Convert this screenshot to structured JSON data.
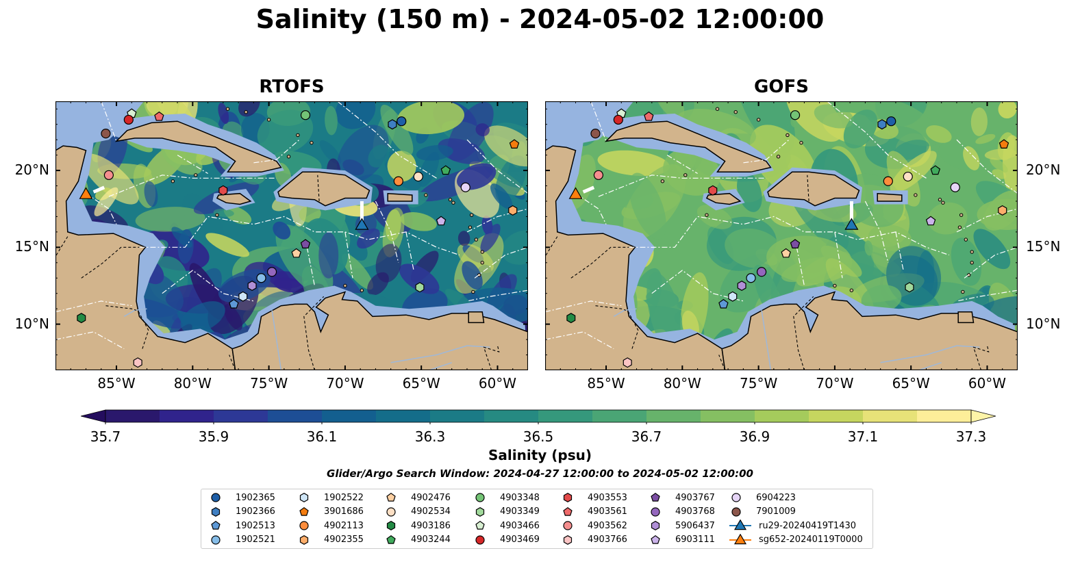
{
  "title": "Salinity (150 m) - 2024-05-02 12:00:00",
  "panels": [
    {
      "title": "RTOFS",
      "kind": "rtofs"
    },
    {
      "title": "GOFS",
      "kind": "gofs"
    }
  ],
  "map": {
    "extent": {
      "lon": [
        -89,
        -58
      ],
      "lat": [
        7,
        24.5
      ]
    },
    "lon_ticks": [
      "85°W",
      "80°W",
      "75°W",
      "70°W",
      "65°W",
      "60°W"
    ],
    "lon_tick_values": [
      -85,
      -80,
      -75,
      -70,
      -65,
      -60
    ],
    "lat_ticks": [
      "20°N",
      "15°N",
      "10°N"
    ],
    "lat_tick_values": [
      20,
      15,
      10
    ],
    "colors": {
      "land": "#d2b48c",
      "shelf": "#96b4e0",
      "eez_lines": "#ffffff",
      "coast": "#000000"
    }
  },
  "colorbar": {
    "label": "Salinity (psu)",
    "ticks": [
      "35.7",
      "35.9",
      "36.1",
      "36.3",
      "36.5",
      "36.7",
      "36.9",
      "37.1",
      "37.3"
    ],
    "min": 35.7,
    "max": 37.3,
    "step": 0.1,
    "colors": [
      "#2a186c",
      "#30238c",
      "#2d3896",
      "#1d4e95",
      "#135f8f",
      "#146d8a",
      "#1b7b86",
      "#268a82",
      "#35987c",
      "#4aa575",
      "#67b36b",
      "#85bf62",
      "#a5cb5c",
      "#c6d65f",
      "#e7e278",
      "#fdee99"
    ],
    "extend": "both"
  },
  "search_window": "Glider/Argo Search Window: 2024-04-27 12:00:00 to 2024-05-02 12:00:00",
  "legend": [
    {
      "label": "1902365",
      "marker": "circle",
      "color": "#1f5fa8"
    },
    {
      "label": "1902366",
      "marker": "hexagon",
      "color": "#3f7fc2"
    },
    {
      "label": "1902513",
      "marker": "pentagon",
      "color": "#5e99d6"
    },
    {
      "label": "1902521",
      "marker": "circle",
      "color": "#86bde8"
    },
    {
      "label": "1902522",
      "marker": "hexagon",
      "color": "#cfe6f7"
    },
    {
      "label": "3901686",
      "marker": "pentagon",
      "color": "#f57c0e"
    },
    {
      "label": "4902113",
      "marker": "circle",
      "color": "#fd8d3c"
    },
    {
      "label": "4902355",
      "marker": "hexagon",
      "color": "#fdae6b"
    },
    {
      "label": "4902476",
      "marker": "pentagon",
      "color": "#fdd0a2"
    },
    {
      "label": "4902534",
      "marker": "circle",
      "color": "#fde0c5"
    },
    {
      "label": "4903186",
      "marker": "hexagon",
      "color": "#238b45"
    },
    {
      "label": "4903244",
      "marker": "pentagon",
      "color": "#41ab5d"
    },
    {
      "label": "4903348",
      "marker": "circle",
      "color": "#74c476"
    },
    {
      "label": "4903349",
      "marker": "hexagon",
      "color": "#a1d99b"
    },
    {
      "label": "4903466",
      "marker": "pentagon",
      "color": "#d9f0d3"
    },
    {
      "label": "4903469",
      "marker": "circle",
      "color": "#d62728"
    },
    {
      "label": "4903553",
      "marker": "hexagon",
      "color": "#e34a4a"
    },
    {
      "label": "4903561",
      "marker": "pentagon",
      "color": "#ef6a6a"
    },
    {
      "label": "4903562",
      "marker": "circle",
      "color": "#f58f8f"
    },
    {
      "label": "4903766",
      "marker": "hexagon",
      "color": "#fbc4c4"
    },
    {
      "label": "4903767",
      "marker": "pentagon",
      "color": "#7b4ea3"
    },
    {
      "label": "4903768",
      "marker": "circle",
      "color": "#9467bd"
    },
    {
      "label": "5906437",
      "marker": "hexagon",
      "color": "#b08fd6"
    },
    {
      "label": "6903111",
      "marker": "pentagon",
      "color": "#cbb3ea"
    },
    {
      "label": "6904223",
      "marker": "circle",
      "color": "#e6d5f7"
    },
    {
      "label": "7901009",
      "marker": "circle",
      "color": "#8c564b"
    },
    {
      "label": "ru29-20240419T1430",
      "marker": "triangle-line",
      "color": "#1f77b4"
    },
    {
      "label": "sg652-20240119T0000",
      "marker": "triangle-line",
      "color": "#ff7f0e"
    }
  ],
  "floats": [
    {
      "id": "7901009",
      "lon": -85.7,
      "lat": 22.4
    },
    {
      "id": "4903466",
      "lon": -84.0,
      "lat": 23.7
    },
    {
      "id": "4903469",
      "lon": -84.2,
      "lat": 23.3
    },
    {
      "id": "4903561",
      "lon": -82.2,
      "lat": 23.5
    },
    {
      "id": "4903348",
      "lon": -72.6,
      "lat": 23.6
    },
    {
      "id": "1902365",
      "lon": -66.3,
      "lat": 23.2
    },
    {
      "id": "1902366",
      "lon": -66.9,
      "lat": 23.0
    },
    {
      "id": "3901686",
      "lon": -58.9,
      "lat": 21.7
    },
    {
      "id": "4903562",
      "lon": -85.5,
      "lat": 19.7
    },
    {
      "id": "4903553",
      "lon": -78.0,
      "lat": 18.7
    },
    {
      "id": "4902113",
      "lon": -66.5,
      "lat": 19.3
    },
    {
      "id": "4902534",
      "lon": -65.2,
      "lat": 19.6
    },
    {
      "id": "4903244",
      "lon": -63.4,
      "lat": 20.0
    },
    {
      "id": "6904223",
      "lon": -62.1,
      "lat": 18.9
    },
    {
      "id": "4902355",
      "lon": -59.0,
      "lat": 17.4
    },
    {
      "id": "6903111",
      "lon": -63.7,
      "lat": 16.7
    },
    {
      "id": "4903767",
      "lon": -72.6,
      "lat": 15.2
    },
    {
      "id": "4902476",
      "lon": -73.2,
      "lat": 14.6
    },
    {
      "id": "4903768",
      "lon": -74.8,
      "lat": 13.4
    },
    {
      "id": "1902521",
      "lon": -75.5,
      "lat": 13.0
    },
    {
      "id": "5906437",
      "lon": -76.1,
      "lat": 12.5
    },
    {
      "id": "1902522",
      "lon": -76.7,
      "lat": 11.8
    },
    {
      "id": "1902513",
      "lon": -77.3,
      "lat": 11.3
    },
    {
      "id": "4903349",
      "lon": -65.1,
      "lat": 12.4
    },
    {
      "id": "4903186",
      "lon": -87.3,
      "lat": 10.4
    },
    {
      "id": "4903766",
      "lon": -83.6,
      "lat": 7.5
    }
  ],
  "gliders": [
    {
      "id": "ru29-20240419T1430",
      "lon": -68.9,
      "lat": 16.4,
      "track": [
        [
          -68.9,
          18.0
        ],
        [
          -68.9,
          16.6
        ]
      ]
    },
    {
      "id": "sg652-20240119T0000",
      "lon": -87.0,
      "lat": 18.4,
      "track": [
        [
          -86.5,
          18.6
        ],
        [
          -85.8,
          18.9
        ]
      ]
    }
  ]
}
